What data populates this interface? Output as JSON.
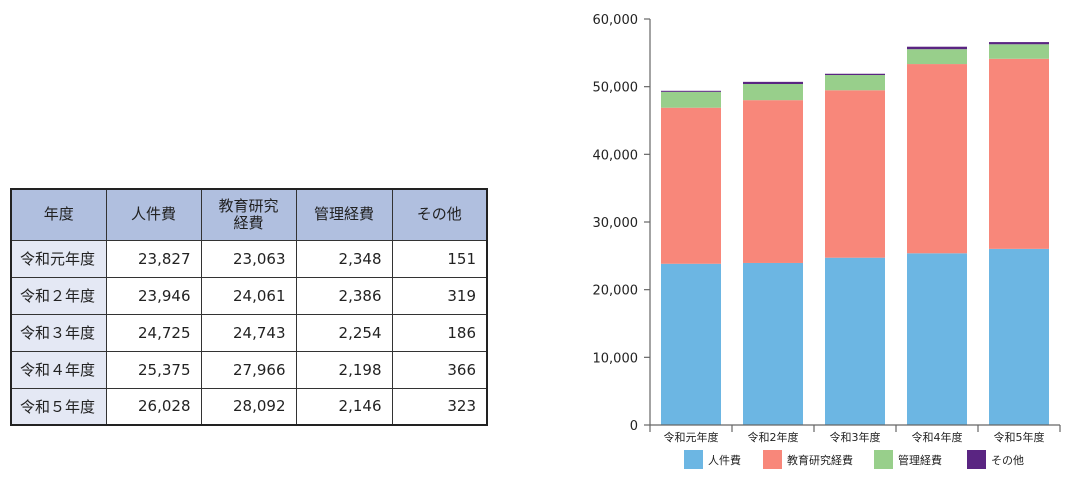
{
  "table": {
    "headers": [
      "年度",
      "人件費",
      "教育研究\n経費",
      "管理経費",
      "その他"
    ],
    "rows": [
      [
        "令和元年度",
        "23,827",
        "23,063",
        "2,348",
        "151"
      ],
      [
        "令和２年度",
        "23,946",
        "24,061",
        "2,386",
        "319"
      ],
      [
        "令和３年度",
        "24,725",
        "24,743",
        "2,254",
        "186"
      ],
      [
        "令和４年度",
        "25,375",
        "27,966",
        "2,198",
        "366"
      ],
      [
        "令和５年度",
        "26,028",
        "28,092",
        "2,146",
        "323"
      ]
    ]
  },
  "chart_data": {
    "type": "bar",
    "stacked": true,
    "categories": [
      "令和元年度",
      "令和2年度",
      "令和3年度",
      "令和4年度",
      "令和5年度"
    ],
    "series": [
      {
        "name": "人件費",
        "values": [
          23827,
          23946,
          24725,
          25375,
          26028
        ],
        "color": "#6cb6e3"
      },
      {
        "name": "教育研究経費",
        "values": [
          23063,
          24061,
          24743,
          27966,
          28092
        ],
        "color": "#f8877a"
      },
      {
        "name": "管理経費",
        "values": [
          2348,
          2386,
          2254,
          2198,
          2146
        ],
        "color": "#98cf8b"
      },
      {
        "name": "その他",
        "values": [
          151,
          319,
          186,
          366,
          323
        ],
        "color": "#5a2582"
      }
    ],
    "yticks": [
      "0",
      "10,000",
      "20,000",
      "30,000",
      "40,000",
      "50,000",
      "60,000"
    ],
    "ylim": [
      0,
      60000
    ],
    "title": "",
    "xlabel": "",
    "ylabel": "",
    "legend_position": "bottom",
    "grid": false
  }
}
